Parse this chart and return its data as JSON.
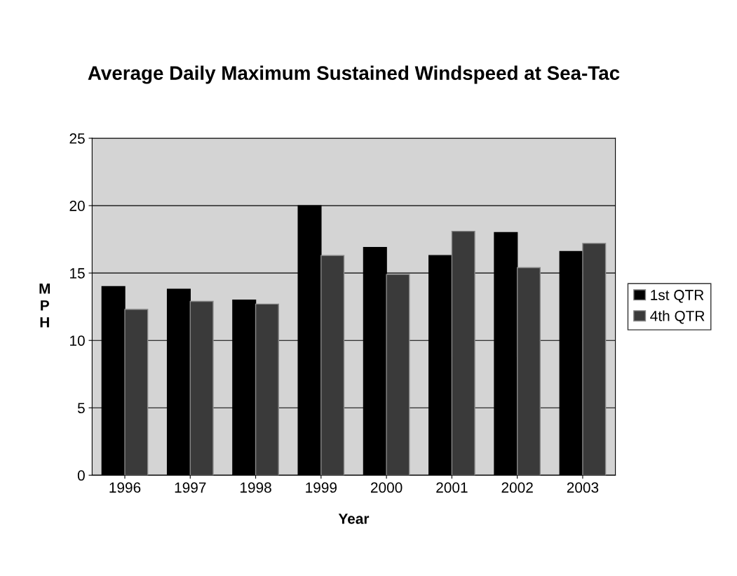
{
  "chart_data": {
    "type": "bar",
    "title": "Average Daily Maximum Sustained Windspeed at Sea-Tac",
    "xlabel": "Year",
    "ylabel": "MPH",
    "categories": [
      "1996",
      "1997",
      "1998",
      "1999",
      "2000",
      "2001",
      "2002",
      "2003"
    ],
    "series": [
      {
        "name": "1st QTR",
        "color": "#000000",
        "values": [
          14.0,
          13.8,
          13.0,
          20.0,
          16.9,
          16.3,
          18.0,
          16.6
        ]
      },
      {
        "name": "4th QTR",
        "color": "#3a3a3a",
        "values": [
          12.3,
          12.9,
          12.7,
          16.3,
          14.9,
          18.1,
          15.4,
          17.2
        ]
      }
    ],
    "ylim": [
      0,
      25
    ],
    "yticks": [
      0,
      5,
      10,
      15,
      20,
      25
    ],
    "grid": "y",
    "legend": "right"
  }
}
